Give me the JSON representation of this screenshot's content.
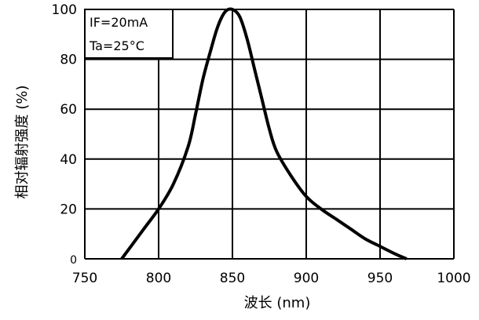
{
  "chart_data": {
    "type": "line",
    "xlabel": "波长 (nm)",
    "ylabel": "相对辐射强度 (%)",
    "xlim": [
      750,
      1000
    ],
    "ylim": [
      0,
      100
    ],
    "x_ticks": [
      750,
      800,
      850,
      900,
      950,
      1000
    ],
    "y_ticks": [
      0,
      20,
      40,
      60,
      80,
      100
    ],
    "x_tick_labels": [
      "750",
      "800",
      "850",
      "900",
      "950",
      "1000"
    ],
    "y_tick_labels": [
      "0",
      "20",
      "40",
      "60",
      "80",
      "100"
    ],
    "grid": true,
    "annotations": [
      "IF=20mA",
      "Ta=25°C"
    ],
    "series": [
      {
        "x": [
          775,
          790,
          800,
          810,
          820,
          825,
          830,
          835,
          840,
          845,
          850,
          855,
          860,
          865,
          870,
          875,
          880,
          890,
          900,
          910,
          920,
          930,
          940,
          950,
          960,
          968
        ],
        "y": [
          0,
          12,
          20,
          30,
          45,
          58,
          72,
          83,
          93,
          99,
          100,
          97,
          88,
          76,
          64,
          52,
          43,
          33,
          25,
          20,
          16,
          12,
          8,
          5,
          2,
          0
        ]
      }
    ]
  }
}
